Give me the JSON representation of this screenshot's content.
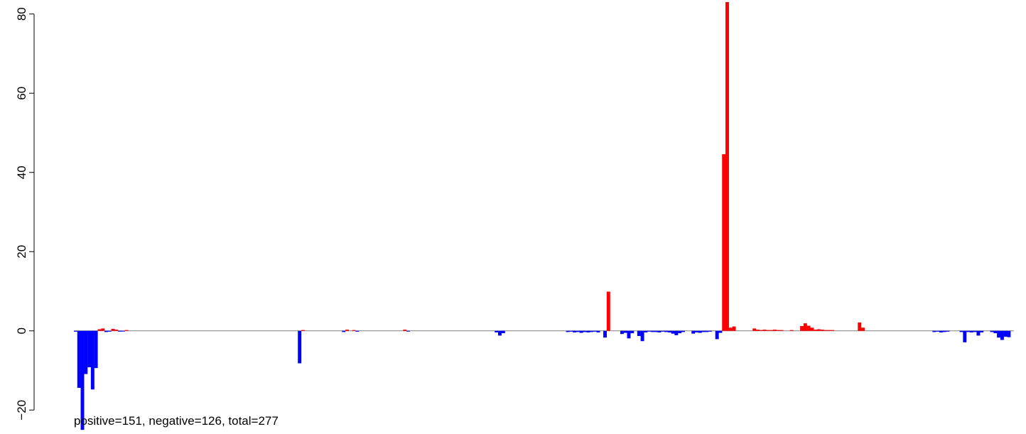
{
  "chart_data": {
    "type": "bar",
    "ylim": [
      -23,
      83
    ],
    "y_ticks": [
      -20,
      0,
      20,
      40,
      60,
      80
    ],
    "y_tick_labels": [
      "−20",
      "0",
      "20",
      "40",
      "60",
      "80"
    ],
    "grid": false,
    "legend": "none",
    "colors": {
      "positive": "#ff0000",
      "negative": "#0000ff",
      "zero_line": "#808080",
      "axis": "#000000"
    },
    "x": [
      1,
      2,
      3,
      4,
      5,
      6,
      7,
      8,
      9,
      10,
      11,
      12,
      13,
      14,
      15,
      16,
      67,
      68,
      80,
      81,
      83,
      84,
      98,
      99,
      125,
      126,
      127,
      146,
      147,
      148,
      149,
      150,
      151,
      152,
      153,
      154,
      155,
      157,
      158,
      162,
      163,
      164,
      165,
      167,
      168,
      169,
      170,
      171,
      172,
      173,
      174,
      175,
      176,
      177,
      178,
      179,
      180,
      183,
      184,
      185,
      186,
      187,
      188,
      190,
      191,
      192,
      193,
      194,
      195,
      201,
      202,
      203,
      204,
      205,
      206,
      207,
      208,
      209,
      212,
      215,
      216,
      217,
      218,
      219,
      220,
      221,
      222,
      223,
      224,
      232,
      233,
      254,
      255,
      256,
      257,
      258,
      262,
      263,
      264,
      265,
      266,
      267,
      268,
      271,
      272,
      273,
      274,
      275,
      276
    ],
    "values": [
      -0.2,
      -14.4,
      -25,
      -10.9,
      -9.2,
      -14.8,
      -9.4,
      0.4,
      0.6,
      -0.3,
      -0.2,
      0.5,
      0.3,
      -0.2,
      -0.1,
      0.2,
      -8.2,
      0.2,
      -0.3,
      0.3,
      0.2,
      -0.2,
      0.3,
      -0.1,
      -0.4,
      -1.2,
      -0.6,
      -0.3,
      -0.2,
      -0.4,
      -0.3,
      -0.5,
      -0.3,
      -0.4,
      -0.3,
      -0.2,
      -0.4,
      -1.7,
      9.9,
      -0.8,
      -0.5,
      -1.9,
      -0.6,
      -1.3,
      -2.6,
      -0.4,
      -0.2,
      -0.3,
      -0.3,
      -0.4,
      -0.2,
      -0.3,
      -0.4,
      -0.7,
      -1.1,
      -0.6,
      -0.3,
      -0.7,
      -0.4,
      -0.5,
      -0.3,
      -0.3,
      -0.2,
      -2.1,
      -0.5,
      44.6,
      83,
      0.8,
      1.1,
      0.6,
      0.3,
      0.2,
      0.3,
      0.2,
      0.2,
      0.3,
      0.2,
      0.2,
      0.2,
      1.2,
      1.9,
      1.3,
      0.8,
      0.3,
      0.4,
      0.3,
      0.2,
      0.2,
      0.2,
      2.1,
      0.8,
      -0.3,
      -0.2,
      -0.4,
      -0.3,
      -0.2,
      -0.3,
      -2.9,
      -0.3,
      -0.4,
      -0.3,
      -1.2,
      -0.4,
      -0.3,
      -0.6,
      -1.7,
      -2.3,
      -1.5,
      -1.6
    ],
    "n_bars": 277,
    "caption": "positive=151, negative=126, total=277"
  }
}
